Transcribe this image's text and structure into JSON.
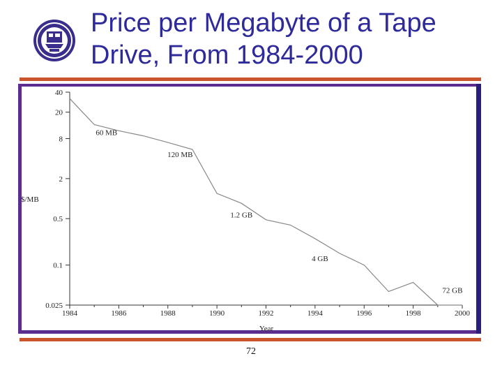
{
  "slide": {
    "title_line1": "Price per Megabyte of a Tape",
    "title_line2": "Drive, From 1984-2000",
    "page_number": "72",
    "logo": "university-seal-icon"
  },
  "colors": {
    "title": "#2e2a9a",
    "rule": "#c9542e",
    "frame": "#5b2d8e",
    "line": "#888888"
  },
  "chart_data": {
    "type": "line",
    "title": "",
    "xlabel": "Year",
    "ylabel": "$/MB",
    "yscale": "log",
    "xlim": [
      1984,
      2000
    ],
    "ylim": [
      0.025,
      40
    ],
    "x_ticks": [
      1984,
      1986,
      1988,
      1990,
      1992,
      1994,
      1996,
      1998,
      2000
    ],
    "x_tick_labels": [
      "1984",
      "1986",
      "1988",
      "1990",
      "1992",
      "1994",
      "1996",
      "1998",
      "2000"
    ],
    "y_ticks": [
      0.025,
      0.1,
      0.5,
      2,
      8,
      20,
      40
    ],
    "y_tick_labels": [
      "0.025",
      "0.1",
      "0.5",
      "2",
      "8",
      "20",
      "40"
    ],
    "series": [
      {
        "x": [
          1984,
          1985,
          1986,
          1987,
          1988,
          1989,
          1990,
          1991,
          1992,
          1993,
          1994,
          1995,
          1996,
          1997,
          1998,
          1999,
          2000
        ],
        "y": [
          32,
          13,
          10.5,
          8.8,
          7,
          5.5,
          1.2,
          0.85,
          0.48,
          0.4,
          0.25,
          0.15,
          0.1,
          0.04,
          0.055,
          0.025,
          0.025
        ]
      }
    ],
    "annotations": [
      {
        "text": "60 MB",
        "x": 1985.5,
        "y": 9
      },
      {
        "text": "120 MB",
        "x": 1988.5,
        "y": 4.2
      },
      {
        "text": "1.2 GB",
        "x": 1991.0,
        "y": 0.52
      },
      {
        "text": "4 GB",
        "x": 1994.2,
        "y": 0.115
      },
      {
        "text": "72 GB",
        "x": 1999.6,
        "y": 0.038
      }
    ]
  }
}
